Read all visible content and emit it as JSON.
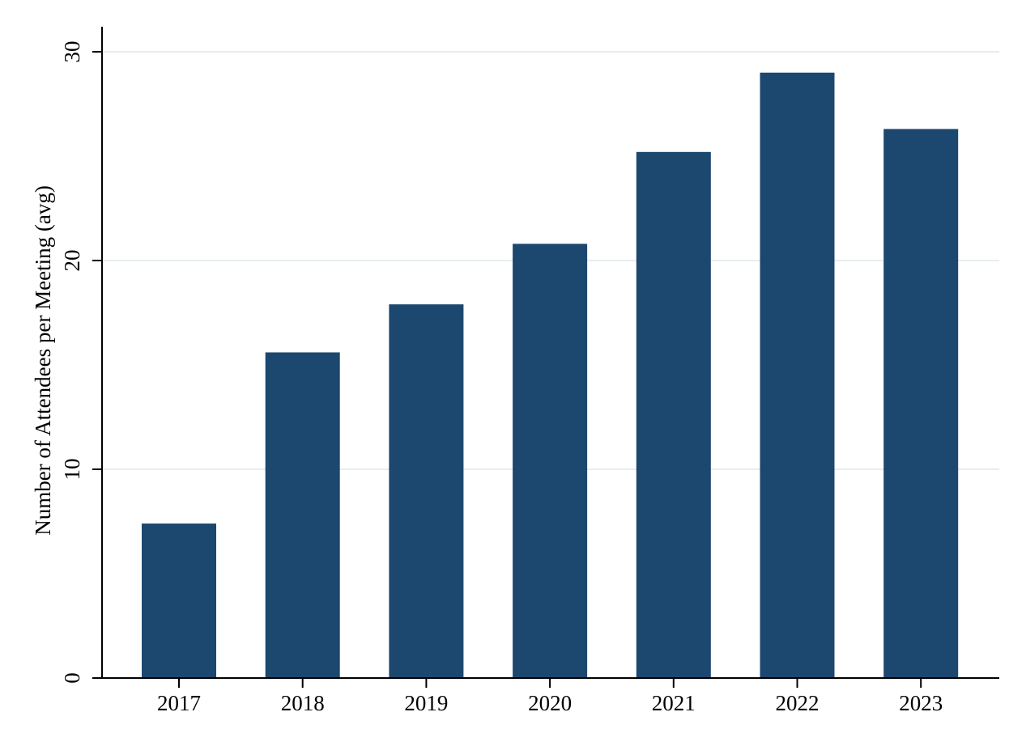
{
  "chart_data": {
    "type": "bar",
    "title": "",
    "xlabel": "",
    "ylabel": "Number of Attendees per Meeting (avg)",
    "categories": [
      "2017",
      "2018",
      "2019",
      "2020",
      "2021",
      "2022",
      "2023"
    ],
    "values": [
      7.4,
      15.6,
      17.9,
      20.8,
      25.2,
      29.0,
      26.3
    ],
    "ylim": [
      0,
      31.2
    ],
    "yticks": [
      0,
      10,
      20,
      30
    ],
    "ytick_labels": [
      "0",
      "10",
      "20",
      "30"
    ],
    "grid": true,
    "legend": "none",
    "colors": {
      "bar": "#1c476e",
      "grid": "#e6eeee",
      "axis": "#000000",
      "background": "#ffffff"
    }
  }
}
